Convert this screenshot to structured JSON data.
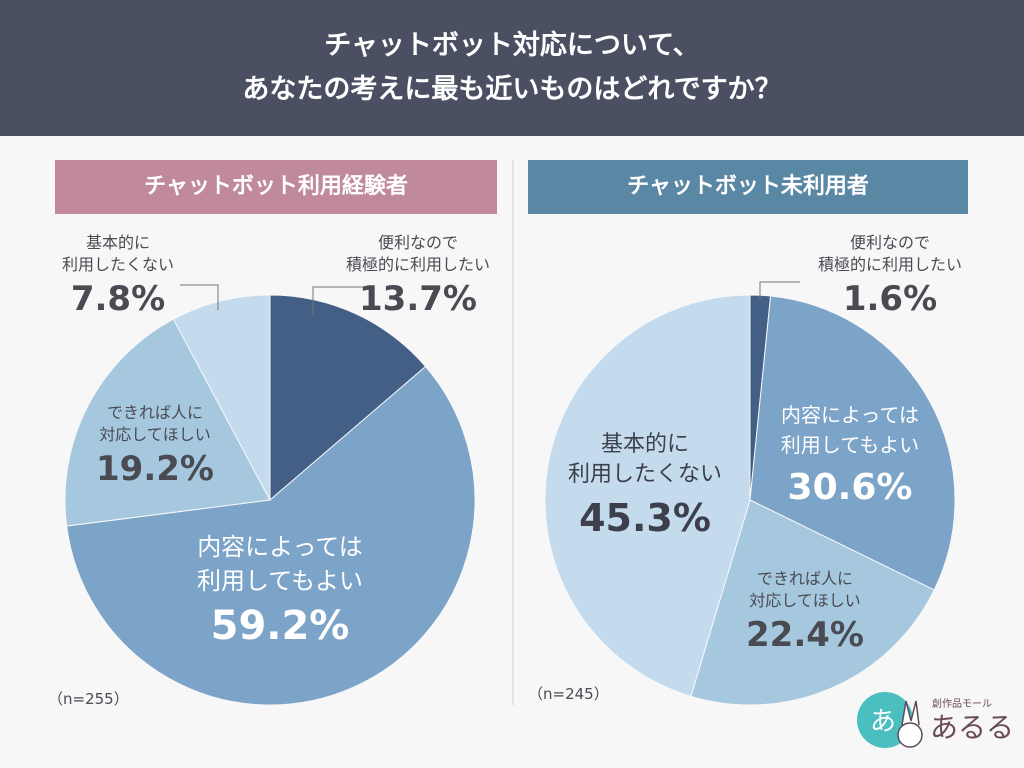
{
  "title_line1": "チャットボット対応について、",
  "title_line2": "あなたの考えに最も近いものはどれですか？",
  "logo_text": "創作品モール あるる",
  "chart_data": [
    {
      "type": "pie",
      "title": "チャットボット利用経験者",
      "n_label": "（n=255）",
      "slices": [
        {
          "label": "便利なので積極的に利用したい",
          "label_lines": [
            "便利なので",
            "積極的に利用したい"
          ],
          "value": 13.7,
          "pct": "13.7%",
          "color": "#445f86"
        },
        {
          "label": "内容によっては利用してもよい",
          "label_lines": [
            "内容によっては",
            "利用してもよい"
          ],
          "value": 59.2,
          "pct": "59.2%",
          "color": "#7ca3c8"
        },
        {
          "label": "できれば人に対応してほしい",
          "label_lines": [
            "できれば人に",
            "対応してほしい"
          ],
          "value": 19.2,
          "pct": "19.2%",
          "color": "#a6c8df"
        },
        {
          "label": "基本的に利用したくない",
          "label_lines": [
            "基本的に",
            "利用したくない"
          ],
          "value": 7.8,
          "pct": "7.8%",
          "color": "#c4dbed"
        }
      ]
    },
    {
      "type": "pie",
      "title": "チャットボット未利用者",
      "n_label": "（n=245）",
      "slices": [
        {
          "label": "便利なので積極的に利用したい",
          "label_lines": [
            "便利なので",
            "積極的に利用したい"
          ],
          "value": 1.6,
          "pct": "1.6%",
          "color": "#445f86"
        },
        {
          "label": "内容によっては利用してもよい",
          "label_lines": [
            "内容によっては",
            "利用してもよい"
          ],
          "value": 30.6,
          "pct": "30.6%",
          "color": "#7ca3c8"
        },
        {
          "label": "できれば人に対応してほしい",
          "label_lines": [
            "できれば人に",
            "対応してほしい"
          ],
          "value": 22.4,
          "pct": "22.4%",
          "color": "#a6c8df"
        },
        {
          "label": "基本的に利用したくない",
          "label_lines": [
            "基本的に",
            "利用したくない"
          ],
          "value": 45.3,
          "pct": "45.3%",
          "color": "#c4dbed"
        }
      ]
    }
  ]
}
